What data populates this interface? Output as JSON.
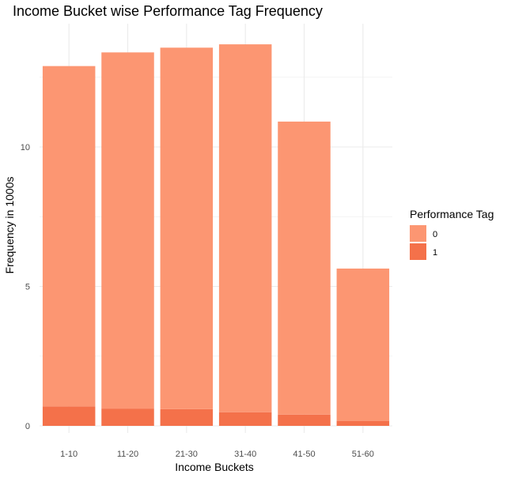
{
  "chart_data": {
    "type": "bar",
    "stacked": true,
    "title": "Income Bucket wise Performance Tag Frequency",
    "xlabel": "Income Buckets",
    "ylabel": "Frequency in 1000s",
    "categories": [
      "1-10",
      "11-20",
      "21-30",
      "31-40",
      "41-50",
      "51-60"
    ],
    "series": [
      {
        "name": "0",
        "color": "#fc9672",
        "values": [
          12.2,
          12.77,
          12.96,
          13.19,
          10.51,
          5.46
        ]
      },
      {
        "name": "1",
        "color": "#f4714a",
        "values": [
          0.7,
          0.62,
          0.6,
          0.49,
          0.4,
          0.18
        ]
      }
    ],
    "ylim": [
      0,
      13.8
    ],
    "yticks": [
      0,
      5,
      10
    ],
    "grid": true,
    "legend": {
      "title": "Performance Tag",
      "position": "right"
    }
  }
}
